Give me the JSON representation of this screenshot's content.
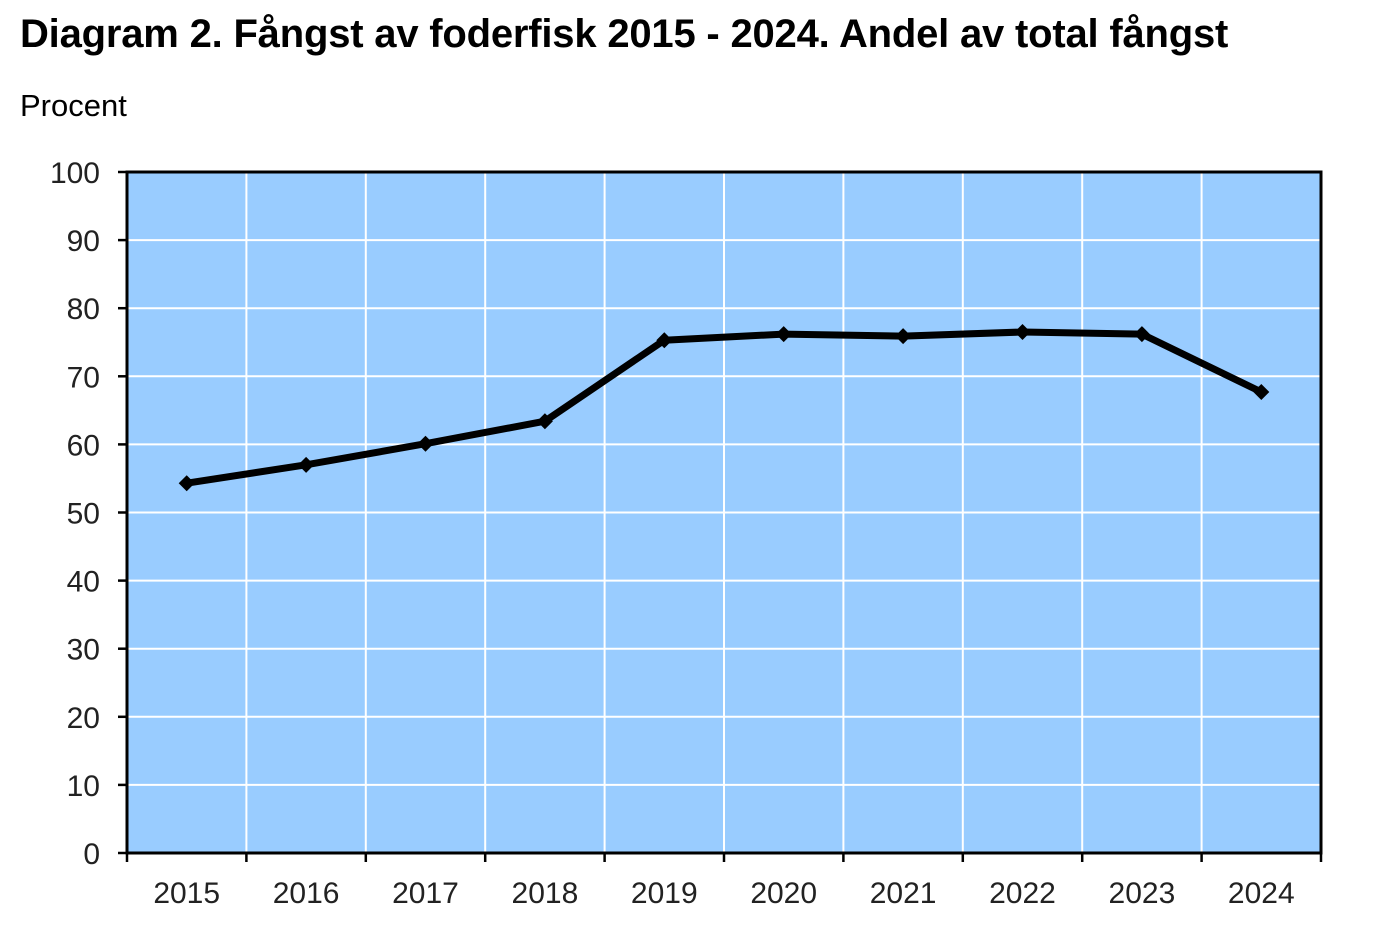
{
  "chart_data": {
    "type": "line",
    "title": "Diagram 2. Fångst av foderfisk 2015 - 2024. Andel av total fångst",
    "ylabel": "Procent",
    "xlabel": "",
    "categories": [
      "2015",
      "2016",
      "2017",
      "2018",
      "2019",
      "2020",
      "2021",
      "2022",
      "2023",
      "2024"
    ],
    "series": [
      {
        "values": [
          54.3,
          57.0,
          60.1,
          63.4,
          75.3,
          76.2,
          75.9,
          76.5,
          76.2,
          67.7
        ]
      }
    ],
    "ylim": [
      0,
      100
    ],
    "yticks": [
      "0",
      "10",
      "20",
      "30",
      "40",
      "50",
      "60",
      "70",
      "80",
      "90",
      "100"
    ],
    "grid": true,
    "legend": "none",
    "colors": {
      "plot_background": "#99ccff",
      "gridline": "#ffffff",
      "line": "#000000",
      "axis": "#000000"
    },
    "marker": "diamond-icon"
  }
}
